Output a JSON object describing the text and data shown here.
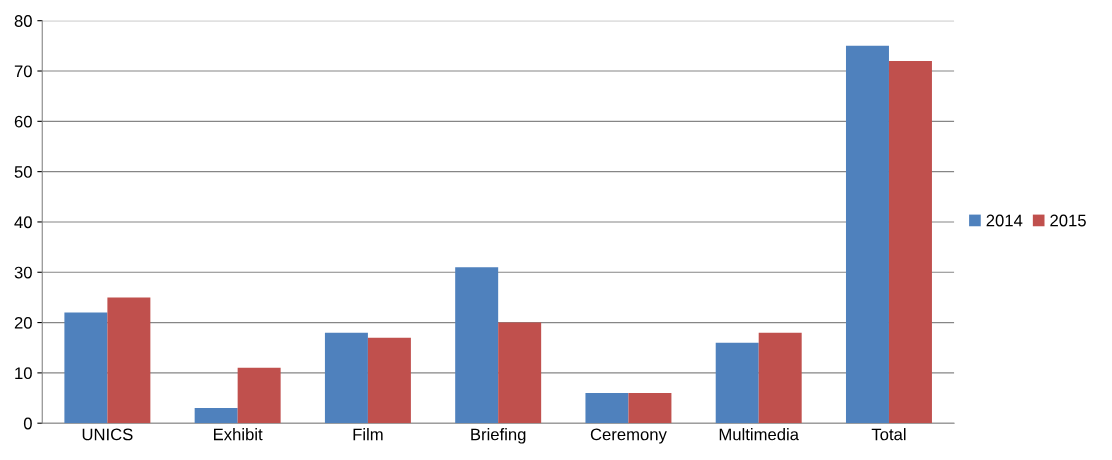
{
  "chart_data": {
    "type": "bar",
    "categories": [
      "UNICS",
      "Exhibit",
      "Film",
      "Briefing",
      "Ceremony",
      "Multimedia",
      "Total"
    ],
    "series": [
      {
        "name": "2014",
        "color": "#4f81bd",
        "values": [
          22,
          3,
          18,
          31,
          6,
          16,
          75
        ]
      },
      {
        "name": "2015",
        "color": "#c0504d",
        "values": [
          25,
          11,
          17,
          20,
          6,
          18,
          72
        ]
      }
    ],
    "ylim": [
      0,
      80
    ],
    "yticks": [
      0,
      10,
      20,
      30,
      40,
      50,
      60,
      70,
      80
    ],
    "grid": "y",
    "legend": "right"
  }
}
